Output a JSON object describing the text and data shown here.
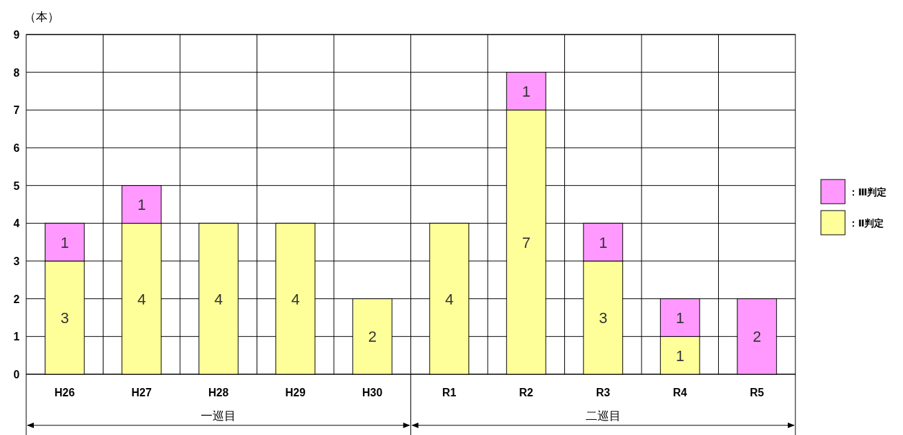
{
  "chart_data": {
    "type": "bar",
    "stacked": true,
    "ylabel": "（本）",
    "categories": [
      "H26",
      "H27",
      "H28",
      "H29",
      "H30",
      "R1",
      "R2",
      "R3",
      "R4",
      "R5"
    ],
    "series": [
      {
        "name": "：Ⅱ判定",
        "color": "#ffff99",
        "values": [
          3,
          4,
          4,
          4,
          2,
          4,
          7,
          3,
          1,
          null
        ]
      },
      {
        "name": "：Ⅲ判定",
        "color": "#ff99ff",
        "values": [
          1,
          1,
          null,
          null,
          null,
          null,
          1,
          1,
          1,
          2
        ]
      }
    ],
    "ylim": [
      0,
      9
    ],
    "yticks": [
      0,
      1,
      2,
      3,
      4,
      5,
      6,
      7,
      8,
      9
    ],
    "grid": true,
    "legend": "right",
    "data_labels": true,
    "annotations": [
      "一巡目",
      "二巡目"
    ]
  }
}
